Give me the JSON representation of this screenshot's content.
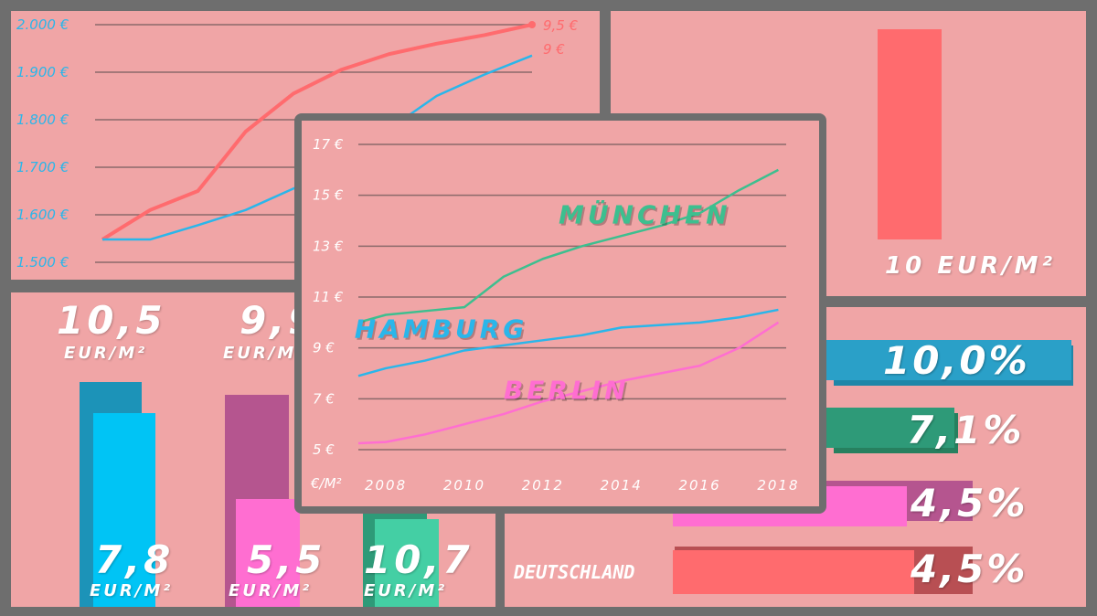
{
  "colors": {
    "panel": "#f0a5a6",
    "frame": "#6e6e6e",
    "red": "#ff6b6e",
    "blue": "#2ab6ea",
    "green": "#3dbf8f",
    "pink": "#ff6ed1",
    "grid": "#8a6a6a"
  },
  "chart_data": [
    {
      "id": "top-left-line",
      "type": "line",
      "yticks": [
        "2.000 €",
        "1.900 €",
        "1.800 €",
        "1.700 €",
        "1.600 €",
        "1.500 €"
      ],
      "ylim": [
        1500,
        2000
      ],
      "right_ticks": [
        "9,5 €",
        "9 €"
      ],
      "series": [
        {
          "color": "#ff6b6e",
          "x": [
            0,
            1,
            2,
            3,
            4,
            5,
            6,
            7,
            8,
            9
          ],
          "values": [
            1548,
            1610,
            1650,
            1775,
            1855,
            1905,
            1938,
            1960,
            1978,
            2000
          ]
        },
        {
          "color": "#2ab6ea",
          "x": [
            0,
            1,
            2,
            3,
            4,
            5,
            6,
            7,
            8,
            9
          ],
          "values": [
            1548,
            1548,
            1578,
            1610,
            1655,
            1700,
            1780,
            1850,
            1895,
            1935
          ]
        }
      ]
    },
    {
      "id": "center-rent-line",
      "type": "line",
      "yticks": [
        "17 €",
        "15 €",
        "13 €",
        "11 €",
        "9 €",
        "7 €",
        "5 €"
      ],
      "ylim": [
        5,
        17
      ],
      "xticks": [
        "2008",
        "2010",
        "2012",
        "2014",
        "2016",
        "2018"
      ],
      "corner_label": "€/M²",
      "series": [
        {
          "name": "MÜNCHEN",
          "color": "#3dbf8f",
          "x": [
            2007.3,
            2008,
            2009,
            2010,
            2011,
            2012,
            2013,
            2014,
            2015,
            2016,
            2017,
            2018
          ],
          "values": [
            10.0,
            10.3,
            10.45,
            10.6,
            11.8,
            12.5,
            13.0,
            13.4,
            13.8,
            14.3,
            15.2,
            16.0
          ]
        },
        {
          "name": "HAMBURG",
          "color": "#2ab6ea",
          "x": [
            2007.3,
            2008,
            2009,
            2010,
            2011,
            2012,
            2013,
            2014,
            2015,
            2016,
            2017,
            2018
          ],
          "values": [
            7.9,
            8.2,
            8.5,
            8.9,
            9.1,
            9.3,
            9.5,
            9.8,
            9.9,
            10.0,
            10.2,
            10.5
          ]
        },
        {
          "name": "BERLIN",
          "color": "#ff6ed1",
          "x": [
            2007.3,
            2008,
            2009,
            2010,
            2011,
            2012,
            2013,
            2014,
            2015,
            2016,
            2017,
            2018
          ],
          "values": [
            5.25,
            5.3,
            5.6,
            6.0,
            6.4,
            6.9,
            7.3,
            7.7,
            8.0,
            8.3,
            9.0,
            10.0
          ]
        }
      ]
    },
    {
      "id": "top-right-bar",
      "type": "bar",
      "values": [
        10
      ],
      "label": "10   EUR/M²"
    },
    {
      "id": "bottom-right-bars",
      "type": "bar",
      "orientation": "horizontal",
      "categories": [
        "",
        "",
        "",
        "DEUTSCHLAND"
      ],
      "values": [
        10.0,
        7.1,
        4.5,
        4.5
      ],
      "labels": [
        "10,0%",
        "7,1%",
        "4,5%",
        "4,5%"
      ],
      "colors": [
        "#2aa0c8",
        "#2e9a78",
        "#ff6ed1",
        "#ff6b6e"
      ],
      "shadow_colors": [
        "#1f86a8",
        "#27805f",
        "#b5558f",
        "#b84f53"
      ]
    }
  ],
  "bottom_left": {
    "top_labels": [
      {
        "value": "10,5",
        "unit": "EUR/M²"
      },
      {
        "value": "9,9",
        "unit": "EUR/M²"
      }
    ],
    "bottom_labels": [
      {
        "value": "7,8",
        "unit": "EUR/M²"
      },
      {
        "value": "5,5",
        "unit": "EUR/M²"
      },
      {
        "value": "10,7",
        "unit": "EUR/M²"
      }
    ]
  }
}
